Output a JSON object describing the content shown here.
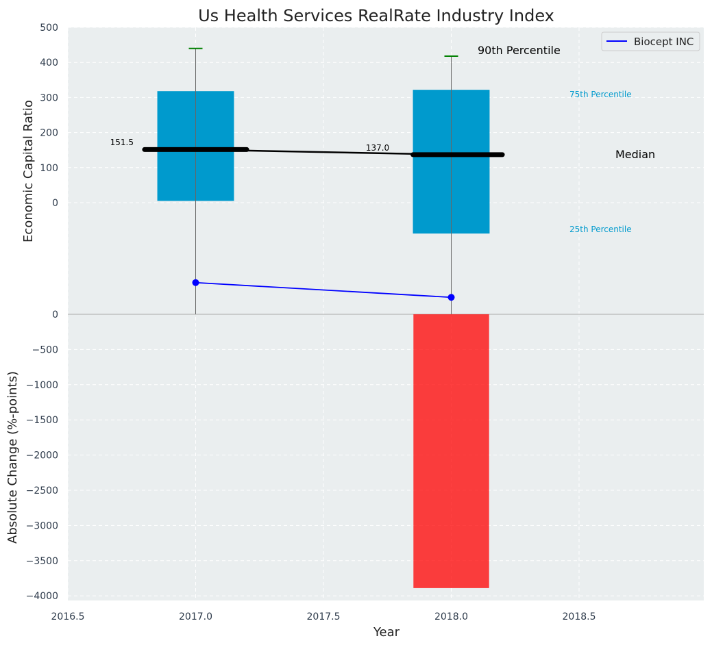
{
  "chart_data": {
    "type": "bar",
    "title": "Us Health Services RealRate Industry Index",
    "xlabel": "Year",
    "xlim": [
      2016.5,
      2018.985
    ],
    "xticks": [
      "2016.5",
      "2017.0",
      "2017.5",
      "2018.0",
      "2018.5"
    ],
    "top_panel": {
      "ylabel": "Economic Capital Ratio",
      "ylim": [
        -318,
        500
      ],
      "yticks": [
        "0",
        "100",
        "200",
        "300",
        "400",
        "500"
      ],
      "years": [
        2017,
        2018
      ],
      "p25": [
        5,
        -88
      ],
      "p75": [
        318,
        322
      ],
      "p90": [
        440,
        418
      ],
      "whisker_low": [
        -318,
        -318
      ],
      "median": [
        151.5,
        137.0
      ],
      "median_labels": [
        "151.5",
        "137.0"
      ],
      "series": [
        {
          "name": "Biocept INC",
          "x": [
            2017,
            2018
          ],
          "values": [
            -228,
            -270
          ],
          "color": "#0000ff"
        }
      ],
      "annotations": {
        "p90": "90th Percentile",
        "p75": "75th Percentile",
        "median": "Median",
        "p25": "25th Percentile"
      },
      "legend": {
        "position": "top-right",
        "entries": [
          "Biocept INC"
        ]
      }
    },
    "bottom_panel": {
      "ylabel": "Absolute Change (%-points)",
      "ylim": [
        -4080,
        0
      ],
      "yticks": [
        "0",
        "−500",
        "−1000",
        "−1500",
        "−2000",
        "−2500",
        "−3000",
        "−3500",
        "−4000"
      ],
      "bars": [
        {
          "x": 2018,
          "value": -3890,
          "color": "#ff0000"
        }
      ]
    },
    "colors": {
      "box": "#009acd",
      "whisker_cap": "#008000",
      "median": "#000000",
      "bg": "#eaeeef"
    }
  }
}
